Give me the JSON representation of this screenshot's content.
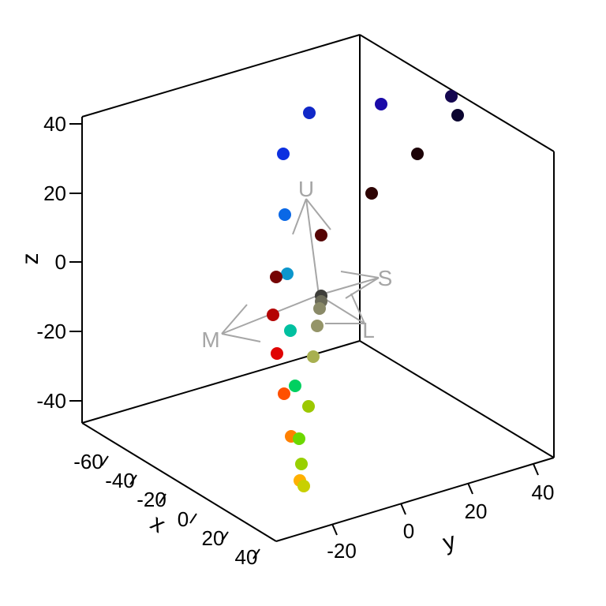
{
  "chart_data": {
    "type": "scatter3d",
    "axes": {
      "x": {
        "label": "x",
        "ticks": [
          "-60",
          "-40",
          "-20",
          "0",
          "20",
          "40"
        ]
      },
      "y": {
        "label": "y",
        "ticks": [
          "-20",
          "0",
          "20",
          "40"
        ]
      },
      "z": {
        "label": "z",
        "ticks": [
          "40",
          "20",
          "0",
          "-20",
          "-40"
        ]
      }
    },
    "vectors": [
      {
        "label": "U"
      },
      {
        "label": "S"
      },
      {
        "label": "L"
      },
      {
        "label": "M"
      }
    ],
    "points": [
      {
        "color": "#0b0530"
      },
      {
        "color": "#14064f"
      },
      {
        "color": "#1a0aa8"
      },
      {
        "color": "#1028c8"
      },
      {
        "color": "#1d0308"
      },
      {
        "color": "#2e0404"
      },
      {
        "color": "#0d30e0"
      },
      {
        "color": "#0a68e6"
      },
      {
        "color": "#560404"
      },
      {
        "color": "#0c96cc"
      },
      {
        "color": "#760404"
      },
      {
        "color": "#3e3e3a"
      },
      {
        "color": "#6a6a58"
      },
      {
        "color": "#8a8a68"
      },
      {
        "color": "#b40404"
      },
      {
        "color": "#949468"
      },
      {
        "color": "#00c0a0"
      },
      {
        "color": "#e00404"
      },
      {
        "color": "#a8b050"
      },
      {
        "color": "#00d060"
      },
      {
        "color": "#ff5000"
      },
      {
        "color": "#9cc800"
      },
      {
        "color": "#ff8000"
      },
      {
        "color": "#6cd800"
      },
      {
        "color": "#98d000"
      },
      {
        "color": "#ffb000"
      },
      {
        "color": "#c8d000"
      }
    ]
  }
}
